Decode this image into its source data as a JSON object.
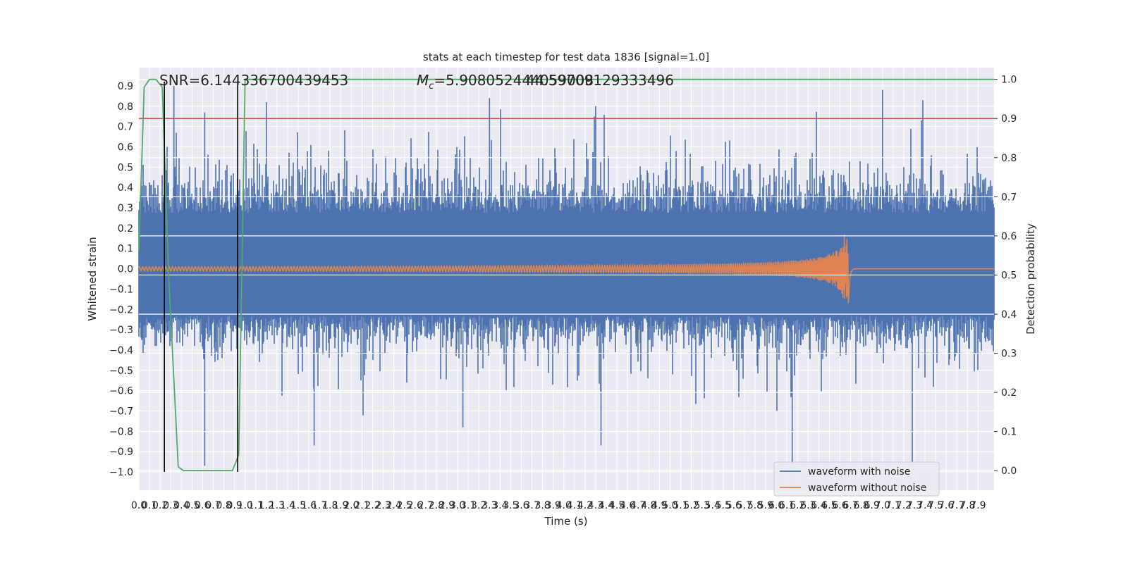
{
  "chart_data": {
    "type": "line",
    "title": "stats at each timestep for test data 1836 [signal=1.0]",
    "xlabel": "Time (s)",
    "ylabel": "Whitened strain",
    "y2label": "Detection probability",
    "xlim": [
      0,
      8.05
    ],
    "ylim": [
      -1.09,
      0.99
    ],
    "y2lim": [
      -0.05,
      1.03
    ],
    "x_ticks": [
      0.0,
      0.1,
      0.2,
      0.3,
      0.4,
      0.5,
      0.6,
      0.7,
      0.8,
      0.9,
      1.0,
      1.1,
      1.2,
      1.3,
      1.4,
      1.5,
      1.6,
      1.7,
      1.8,
      1.9,
      2.0,
      2.1,
      2.2,
      2.3,
      2.4,
      2.5,
      2.6,
      2.7,
      2.8,
      2.9,
      3.0,
      3.1,
      3.2,
      3.3,
      3.4,
      3.5,
      3.6,
      3.7,
      3.8,
      3.9,
      4.0,
      4.1,
      4.2,
      4.3,
      4.4,
      4.5,
      4.6,
      4.7,
      4.8,
      4.9,
      5.0,
      5.1,
      5.2,
      5.3,
      5.4,
      5.5,
      5.6,
      5.7,
      5.8,
      5.9,
      6.0,
      6.1,
      6.2,
      6.3,
      6.4,
      6.5,
      6.6,
      6.7,
      6.8,
      6.9,
      7.0,
      7.1,
      7.2,
      7.3,
      7.4,
      7.5,
      7.6,
      7.7,
      7.8,
      7.9
    ],
    "x_tick_labels": [
      "0.0",
      "0.1",
      "0.2",
      "0.3",
      "0.4",
      "0.5",
      "0.6",
      "0.7",
      "0.8",
      "0.9",
      "1.0",
      "1.1",
      "1.2",
      "1.3",
      "1.4",
      "1.5",
      "1.6",
      "1.7",
      "1.8",
      "1.9",
      "2.0",
      "2.1",
      "2.2",
      "2.3",
      "2.4",
      "2.5",
      "2.6",
      "2.7",
      "2.8",
      "2.9",
      "3.0",
      "3.1",
      "3.2",
      "3.3",
      "3.4",
      "3.5",
      "3.6",
      "3.7",
      "3.8",
      "3.9",
      "4.0",
      "4.1",
      "4.2",
      "4.3",
      "4.4",
      "4.5",
      "4.6",
      "4.7",
      "4.8",
      "4.9",
      "5.0",
      "5.1",
      "5.2",
      "5.3",
      "5.4",
      "5.5",
      "5.6",
      "5.7",
      "5.8",
      "5.9",
      "6.0",
      "6.1",
      "6.2",
      "6.3",
      "6.4",
      "6.5",
      "6.6",
      "6.7",
      "6.8",
      "6.9",
      "7.0",
      "7.1",
      "7.2",
      "7.3",
      "7.4",
      "7.5",
      "7.6",
      "7.7",
      "7.8",
      "7.9"
    ],
    "y_ticks": [
      0.9,
      0.8,
      0.7,
      0.6,
      0.5,
      0.4,
      0.3,
      0.2,
      0.1,
      0.0,
      -0.1,
      -0.2,
      -0.3,
      -0.4,
      -0.5,
      -0.6,
      -0.7,
      -0.8,
      -0.9,
      -1.0
    ],
    "y_tick_labels": [
      "0.9",
      "0.8",
      "0.7",
      "0.6",
      "0.5",
      "0.4",
      "0.3",
      "0.2",
      "0.1",
      "0.0",
      "−0.1",
      "−0.2",
      "−0.3",
      "−0.4",
      "−0.5",
      "−0.6",
      "−0.7",
      "−0.8",
      "−0.9",
      "−1.0"
    ],
    "y2_ticks": [
      1.0,
      0.9,
      0.8,
      0.7,
      0.6,
      0.5,
      0.4,
      0.3,
      0.2,
      0.1,
      0.0
    ],
    "y2_tick_labels": [
      "1.0",
      "0.9",
      "0.8",
      "0.7",
      "0.6",
      "0.5",
      "0.4",
      "0.3",
      "0.2",
      "0.1",
      "0.0"
    ],
    "grid": true,
    "legend_placement": "lower-right",
    "annotations": {
      "snr": "SNR=6.144336700439453",
      "mc_prefix": "M",
      "mc_sub": "c",
      "mc_value": "=5.908052444059008",
      "mc_overlap": "44.59709129333496"
    },
    "series": [
      {
        "name": "waveform with noise",
        "color": "#4c72b0",
        "kind": "noise",
        "t_range": [
          0.0,
          8.05
        ],
        "typical_band": [
          -0.42,
          0.5
        ],
        "peaks_max": [
          [
            0.33,
            0.9
          ],
          [
            7.0,
            0.88
          ],
          [
            7.38,
            0.83
          ],
          [
            3.3,
            0.84
          ],
          [
            4.3,
            0.8
          ],
          [
            1.2,
            0.82
          ],
          [
            0.62,
            0.77
          ]
        ],
        "peaks_min": [
          [
            0.62,
            -0.97
          ],
          [
            6.15,
            -0.96
          ],
          [
            7.28,
            -0.95
          ],
          [
            3.05,
            -0.78
          ],
          [
            4.35,
            -0.87
          ],
          [
            1.65,
            -0.87
          ]
        ]
      },
      {
        "name": "waveform without noise",
        "color": "#dd8452",
        "kind": "chirp",
        "t_range": [
          0.0,
          8.05
        ],
        "merger_time": 6.68,
        "amplitude_start": 0.01,
        "amplitude_peak": 0.17,
        "cycles_visible": 280
      },
      {
        "name": "detection probability",
        "color": "#55a868",
        "axis": "right",
        "points": [
          [
            0.0,
            0.56
          ],
          [
            0.05,
            0.98
          ],
          [
            0.1,
            1.0
          ],
          [
            0.16,
            1.0
          ],
          [
            0.22,
            0.98
          ],
          [
            0.28,
            0.5
          ],
          [
            0.37,
            0.01
          ],
          [
            0.42,
            0.0
          ],
          [
            0.7,
            0.0
          ],
          [
            0.88,
            0.0
          ],
          [
            0.94,
            0.04
          ],
          [
            1.0,
            1.0
          ],
          [
            8.05,
            1.0
          ]
        ]
      },
      {
        "name": "threshold",
        "color": "#c44e52",
        "axis": "right",
        "value": 0.9
      }
    ],
    "vertical_markers": [
      0.24,
      0.93
    ]
  },
  "legend": {
    "items": [
      {
        "label": "waveform with noise",
        "color": "#4c72b0"
      },
      {
        "label": "waveform without noise",
        "color": "#dd8452"
      }
    ]
  }
}
